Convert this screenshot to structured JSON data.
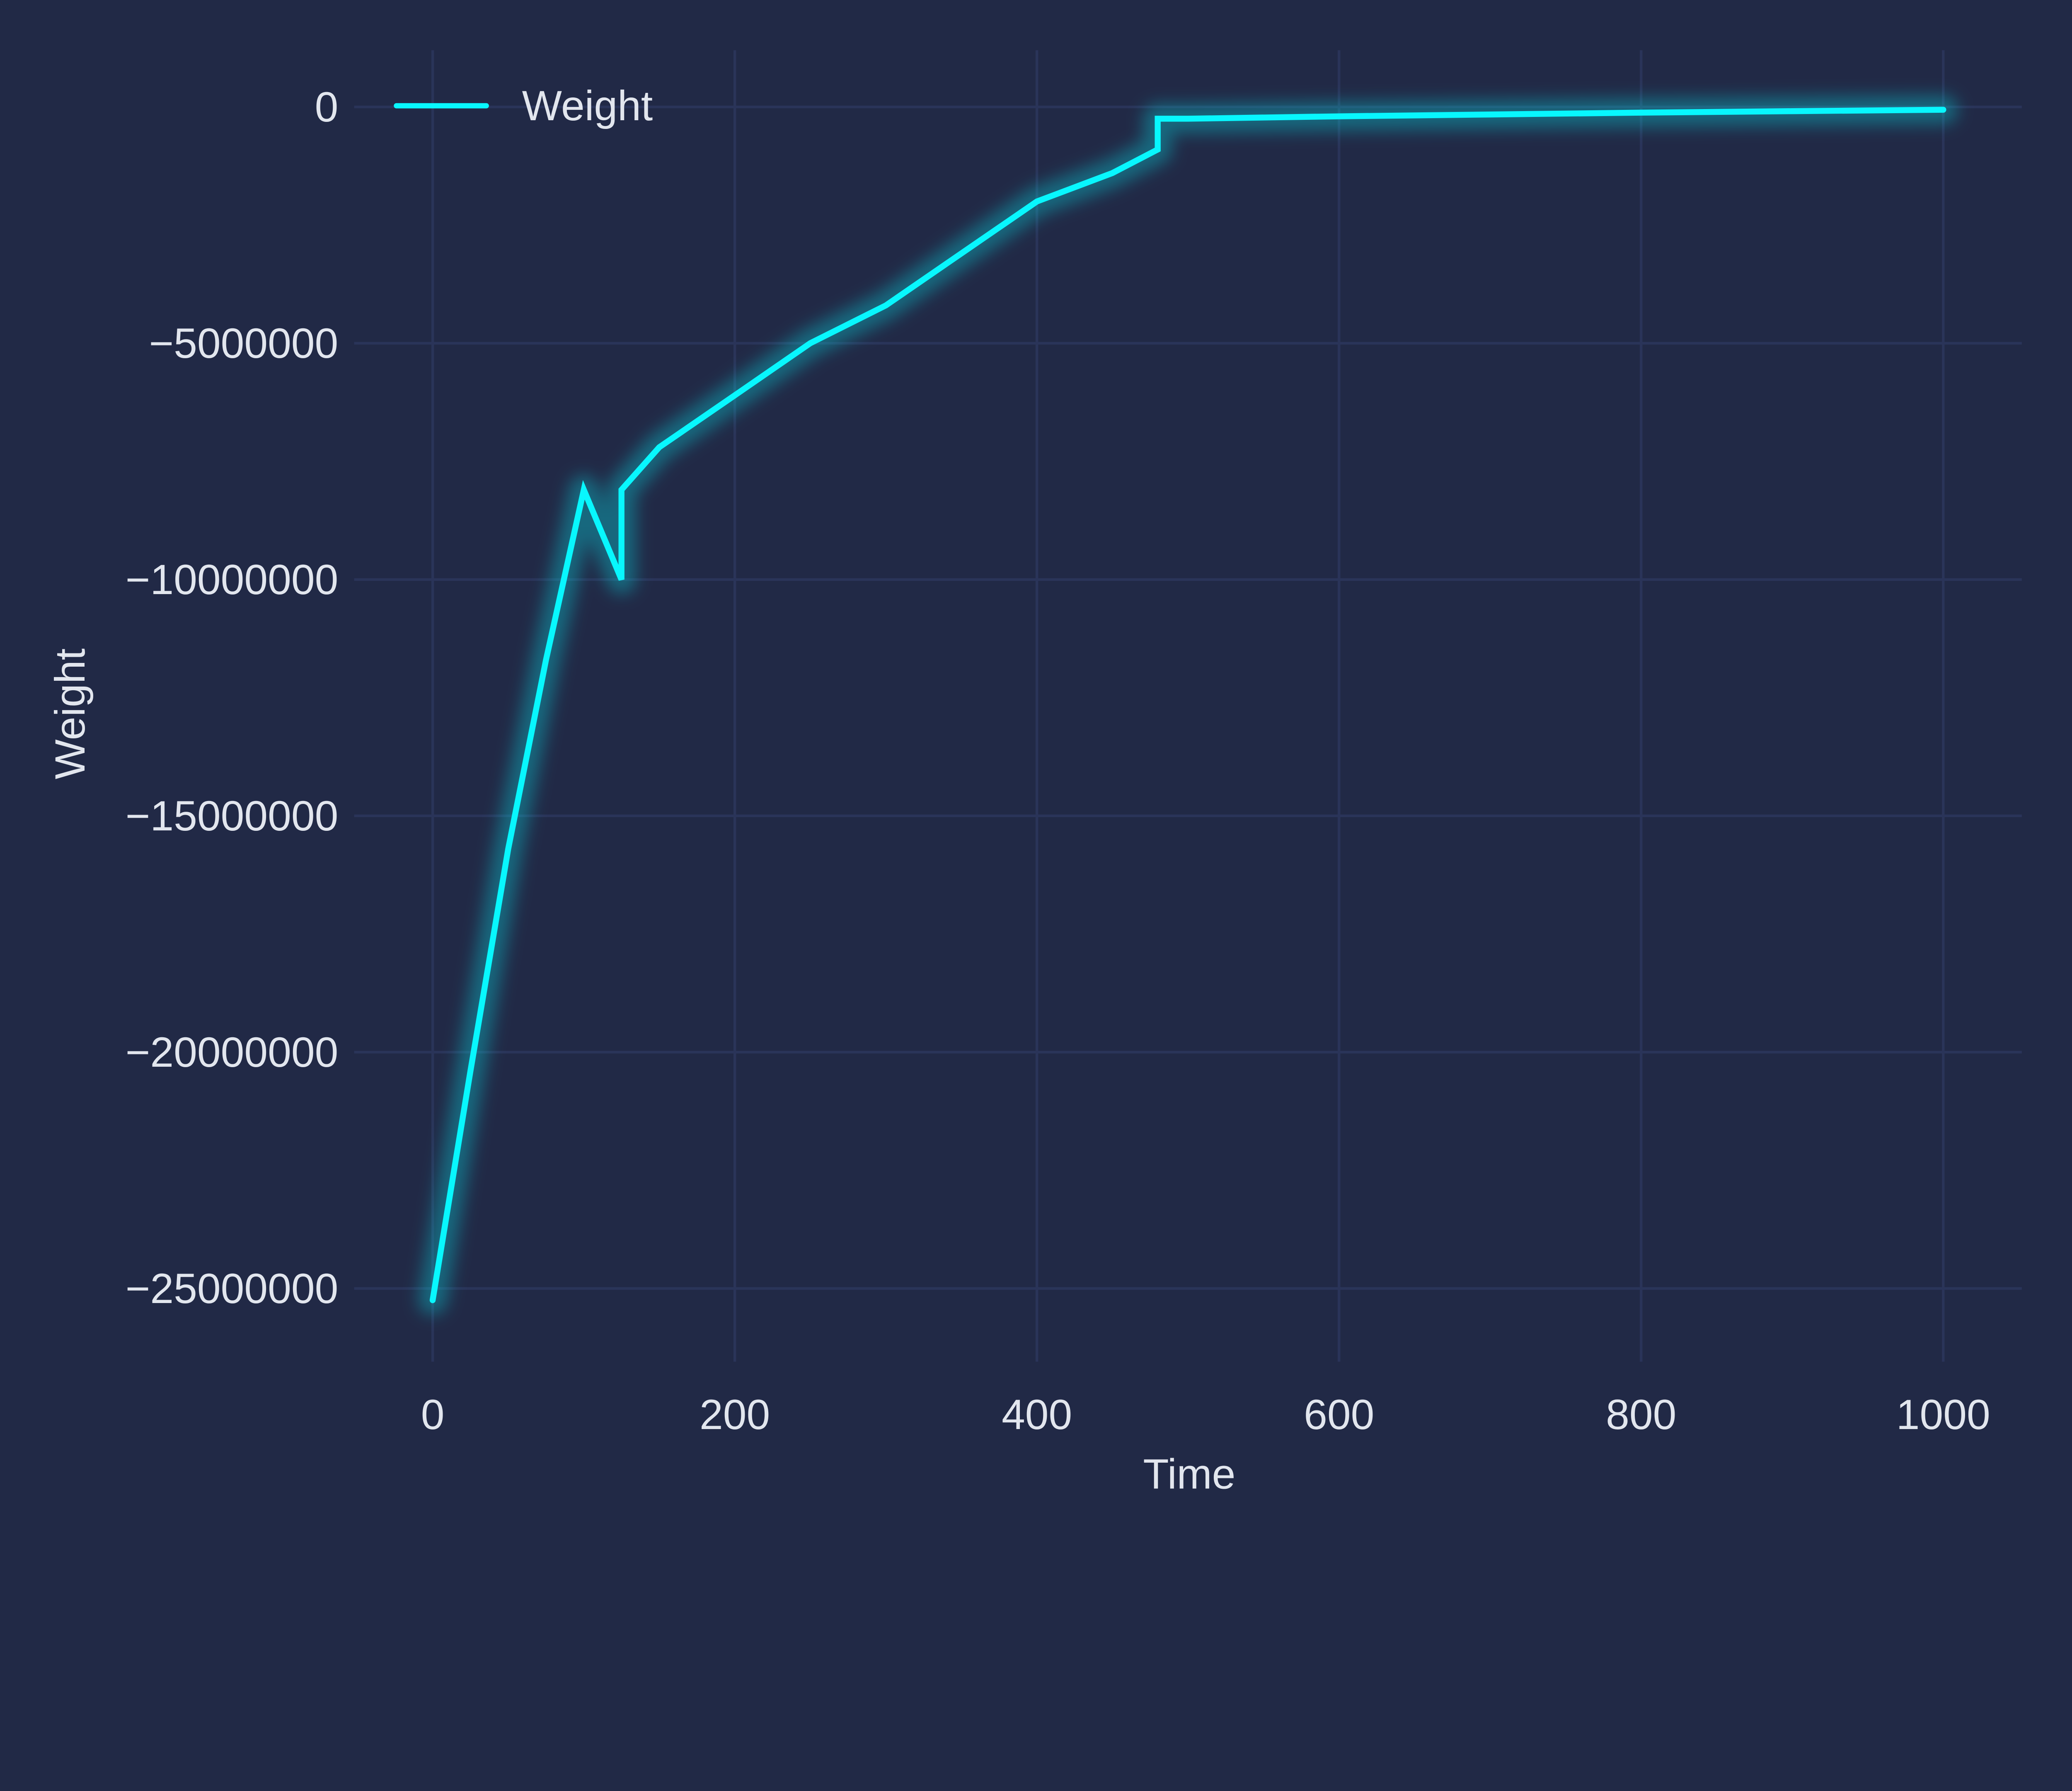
{
  "chart_data": {
    "type": "line",
    "xlabel": "Time",
    "ylabel": "Weight",
    "xlim": [
      -52,
      1052
    ],
    "ylim": [
      -26550000,
      1200000
    ],
    "xticks": [
      0,
      200,
      400,
      600,
      800,
      1000
    ],
    "yticks": [
      0,
      -5000000,
      -10000000,
      -15000000,
      -20000000,
      -25000000
    ],
    "xtick_labels": [
      "0",
      "200",
      "400",
      "600",
      "800",
      "1000"
    ],
    "ytick_labels": [
      "0",
      "−5000000",
      "−10000000",
      "−15000000",
      "−20000000",
      "−25000000"
    ],
    "grid": true,
    "legend_position": "top-left",
    "colors": {
      "background": "#212946",
      "grid": "#2A3459",
      "line": "#08F7FE",
      "text": "#e2e6ee"
    },
    "series": [
      {
        "name": "Weight",
        "x": [
          0,
          25,
          50,
          75,
          100,
          125,
          125,
          150,
          200,
          250,
          300,
          350,
          400,
          450,
          480,
          480,
          500,
          600,
          700,
          800,
          900,
          1000
        ],
        "y": [
          -25250000,
          -20400000,
          -15700000,
          -11700000,
          -8100000,
          -10000000,
          -8100000,
          -7200000,
          -6100000,
          -5000000,
          -4200000,
          -3100000,
          -2000000,
          -1400000,
          -900000,
          -250000,
          -250000,
          -200000,
          -160000,
          -120000,
          -90000,
          -60000
        ]
      }
    ]
  }
}
